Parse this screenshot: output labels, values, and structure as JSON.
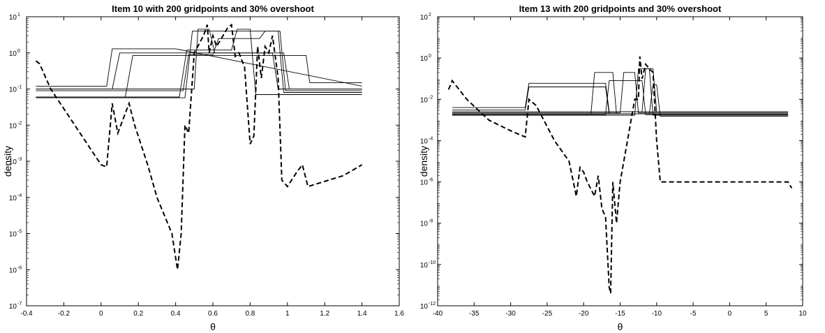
{
  "chart_data": [
    {
      "type": "line",
      "title": "Item 10 with 200 gridpoints and 30% overshoot",
      "xlabel": "θ",
      "ylabel": "density",
      "xlim": [
        -0.4,
        1.6
      ],
      "ylim_log10": [
        -7,
        1
      ],
      "y_scale": "log",
      "x_ticks": [
        "-0.4",
        "-0.2",
        "0",
        "0.2",
        "0.4",
        "0.6",
        "0.8",
        "1",
        "1.2",
        "1.4",
        "1.6"
      ],
      "y_tick_exponents": [
        "-7",
        "-6",
        "-5",
        "-4",
        "-3",
        "-2",
        "-1",
        "0",
        "1"
      ],
      "y_tick_base": "10",
      "series": [
        {
          "style": "solid",
          "x": [
            -0.35,
            0.03,
            0.06,
            0.4,
            1.4
          ],
          "y": [
            0.12,
            0.12,
            1.3,
            1.3,
            0.12
          ]
        },
        {
          "style": "solid",
          "x": [
            -0.35,
            0.06,
            0.1,
            0.98,
            1.01,
            1.4
          ],
          "y": [
            0.1,
            0.1,
            1.0,
            1.0,
            0.1,
            0.1
          ]
        },
        {
          "style": "solid",
          "x": [
            -0.35,
            0.13,
            0.17,
            1.1,
            1.12,
            1.4
          ],
          "y": [
            0.06,
            0.06,
            0.85,
            0.85,
            0.15,
            0.15
          ]
        },
        {
          "style": "solid",
          "x": [
            -0.35,
            0.45,
            0.49,
            0.95,
            0.98,
            1.4
          ],
          "y": [
            0.057,
            0.057,
            4.0,
            4.0,
            0.08,
            0.08
          ]
        },
        {
          "style": "solid",
          "x": [
            -0.35,
            0.42,
            0.46,
            0.7,
            0.73,
            0.8,
            0.83,
            1.4
          ],
          "y": [
            0.06,
            0.06,
            1.2,
            1.2,
            4.5,
            4.5,
            0.07,
            0.07
          ]
        },
        {
          "style": "solid",
          "x": [
            -0.35,
            0.44,
            0.47,
            0.6,
            0.63,
            0.85,
            0.88,
            0.96,
            0.99,
            1.4
          ],
          "y": [
            0.09,
            0.09,
            0.9,
            0.9,
            2.5,
            2.5,
            4.0,
            4.0,
            0.09,
            0.09
          ]
        },
        {
          "style": "solid",
          "x": [
            -0.35,
            0.5,
            0.52,
            0.58,
            0.61,
            0.92,
            0.95,
            1.4
          ],
          "y": [
            0.1,
            0.1,
            4.5,
            4.5,
            1.0,
            1.0,
            0.1,
            0.1
          ]
        },
        {
          "style": "dashed",
          "x": [
            -0.35,
            -0.33,
            -0.27,
            0.0,
            0.03,
            0.06,
            0.09,
            0.15,
            0.18,
            0.25,
            0.3,
            0.38,
            0.41,
            0.43,
            0.45,
            0.47,
            0.5,
            0.55,
            0.57,
            0.58,
            0.6,
            0.62,
            0.68,
            0.7,
            0.72,
            0.74,
            0.77,
            0.8,
            0.82,
            0.84,
            0.86,
            0.88,
            0.9,
            0.92,
            0.95,
            0.97,
            1.0,
            1.05,
            1.08,
            1.11,
            1.3,
            1.4
          ],
          "y": [
            0.6,
            0.5,
            0.1,
            0.0008,
            0.0007,
            0.04,
            0.006,
            0.04,
            0.01,
            0.0008,
            0.0001,
            1e-05,
            1e-06,
            1e-05,
            0.01,
            0.006,
            1.0,
            3.0,
            6.0,
            1.0,
            3.0,
            1.5,
            5.0,
            6.0,
            0.8,
            1.0,
            0.4,
            0.003,
            0.005,
            1.5,
            0.2,
            1.5,
            1.0,
            3.0,
            0.2,
            0.0003,
            0.0002,
            0.0005,
            0.0008,
            0.0002,
            0.0004,
            0.0008
          ]
        }
      ]
    },
    {
      "type": "line",
      "title": "Item 13 with 200 gridpoints and 30% overshoot",
      "xlabel": "θ",
      "ylabel": "density",
      "xlim": [
        -40,
        10
      ],
      "ylim_log10": [
        -12,
        2
      ],
      "y_scale": "log",
      "x_ticks": [
        "-40",
        "-35",
        "-30",
        "-25",
        "-20",
        "-15",
        "-10",
        "-5",
        "0",
        "5",
        "10"
      ],
      "y_tick_exponents": [
        "-12",
        "-10",
        "-8",
        "-6",
        "-4",
        "-2",
        "0",
        "2"
      ],
      "y_tick_base": "10",
      "series": [
        {
          "style": "solid",
          "x": [
            -38,
            -28,
            -27.5,
            -17,
            -16.5,
            8
          ],
          "y": [
            0.004,
            0.004,
            0.06,
            0.06,
            0.0025,
            0.0025
          ]
        },
        {
          "style": "solid",
          "x": [
            -38,
            -28,
            -27.5,
            -17,
            -16.5,
            8
          ],
          "y": [
            0.003,
            0.003,
            0.04,
            0.04,
            0.002,
            0.002
          ]
        },
        {
          "style": "solid",
          "x": [
            -38,
            -19,
            -18.5,
            -16,
            -15.5,
            8
          ],
          "y": [
            0.002,
            0.002,
            0.2,
            0.2,
            0.002,
            0.002
          ]
        },
        {
          "style": "solid",
          "x": [
            -38,
            -17,
            -16.5,
            -12,
            -11.5,
            8
          ],
          "y": [
            0.0018,
            0.0018,
            0.08,
            0.08,
            0.0018,
            0.0018
          ]
        },
        {
          "style": "solid",
          "x": [
            -38,
            -15,
            -14.5,
            -13,
            -12.5,
            8
          ],
          "y": [
            0.0022,
            0.0022,
            0.2,
            0.2,
            0.0022,
            0.0022
          ]
        },
        {
          "style": "solid",
          "x": [
            -38,
            -12,
            -11.5,
            -10.5,
            -10,
            8
          ],
          "y": [
            0.0025,
            0.0025,
            0.3,
            0.3,
            0.0025,
            0.0025
          ]
        },
        {
          "style": "solid",
          "x": [
            -38,
            -13,
            -12.5,
            -11,
            -10.5,
            8
          ],
          "y": [
            0.0017,
            0.0017,
            0.3,
            0.3,
            0.0017,
            0.0017
          ]
        },
        {
          "style": "solid",
          "x": [
            -38,
            -11,
            -10.5,
            -10,
            -9.5,
            8
          ],
          "y": [
            0.002,
            0.002,
            0.05,
            0.05,
            0.0015,
            0.0015
          ]
        },
        {
          "style": "dashed",
          "x": [
            -38.5,
            -38,
            -36,
            -33,
            -30,
            -28,
            -27.5,
            -26.5,
            -24,
            -22,
            -21,
            -20.5,
            -20,
            -19.5,
            -18.5,
            -18,
            -17.5,
            -17,
            -16.5,
            -16.3,
            -16,
            -15.5,
            -15,
            -14,
            -13,
            -12.5,
            -12.3,
            -12,
            -11.5,
            -11,
            -10.5,
            -10,
            -9.5,
            8,
            8.5
          ],
          "y": [
            0.03,
            0.08,
            0.01,
            0.001,
            0.0003,
            0.00015,
            0.01,
            0.005,
            0.0001,
            1e-05,
            2e-07,
            5e-06,
            3e-06,
            1e-06,
            2e-07,
            2e-06,
            5e-08,
            2e-08,
            8e-12,
            4e-12,
            1e-06,
            1e-08,
            1e-06,
            0.0001,
            0.01,
            0.01,
            1.2,
            0.1,
            0.5,
            0.3,
            0.2,
            0.0001,
            1e-06,
            1e-06,
            5e-07
          ]
        }
      ]
    }
  ]
}
